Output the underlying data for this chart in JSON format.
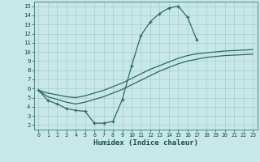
{
  "xlabel": "Humidex (Indice chaleur)",
  "bg_color": "#c8e8e8",
  "grid_color": "#aacccc",
  "line_color": "#2a6a5a",
  "xlim": [
    -0.5,
    23.5
  ],
  "ylim": [
    1.5,
    15.5
  ],
  "xticks": [
    0,
    1,
    2,
    3,
    4,
    5,
    6,
    7,
    8,
    9,
    10,
    11,
    12,
    13,
    14,
    15,
    16,
    17,
    18,
    19,
    20,
    21,
    22,
    23
  ],
  "yticks": [
    2,
    3,
    4,
    5,
    6,
    7,
    8,
    9,
    10,
    11,
    12,
    13,
    14,
    15
  ],
  "main_x": [
    0,
    1,
    2,
    3,
    4,
    5,
    6,
    7,
    8,
    9,
    10,
    11,
    12,
    13,
    14,
    15,
    16,
    17
  ],
  "main_y": [
    5.8,
    4.7,
    4.3,
    3.8,
    3.6,
    3.5,
    2.2,
    2.2,
    2.4,
    4.8,
    8.5,
    11.8,
    13.3,
    14.2,
    14.8,
    15.0,
    13.8,
    11.3
  ],
  "upper_x": [
    0,
    1,
    2,
    3,
    4,
    5,
    6,
    7,
    8,
    9,
    10,
    11,
    12,
    13,
    14,
    15,
    16,
    17,
    18,
    19,
    20,
    21,
    22,
    23
  ],
  "upper_y": [
    5.8,
    5.5,
    5.3,
    5.1,
    5.0,
    5.2,
    5.5,
    5.8,
    6.2,
    6.6,
    7.1,
    7.6,
    8.1,
    8.5,
    8.9,
    9.3,
    9.6,
    9.8,
    9.9,
    10.0,
    10.1,
    10.15,
    10.2,
    10.25
  ],
  "lower_x": [
    0,
    1,
    2,
    3,
    4,
    5,
    6,
    7,
    8,
    9,
    10,
    11,
    12,
    13,
    14,
    15,
    16,
    17,
    18,
    19,
    20,
    21,
    22,
    23
  ],
  "lower_y": [
    5.8,
    5.1,
    4.8,
    4.5,
    4.3,
    4.5,
    4.8,
    5.1,
    5.5,
    5.9,
    6.4,
    6.9,
    7.4,
    7.9,
    8.3,
    8.7,
    9.0,
    9.2,
    9.4,
    9.5,
    9.6,
    9.65,
    9.7,
    9.75
  ]
}
